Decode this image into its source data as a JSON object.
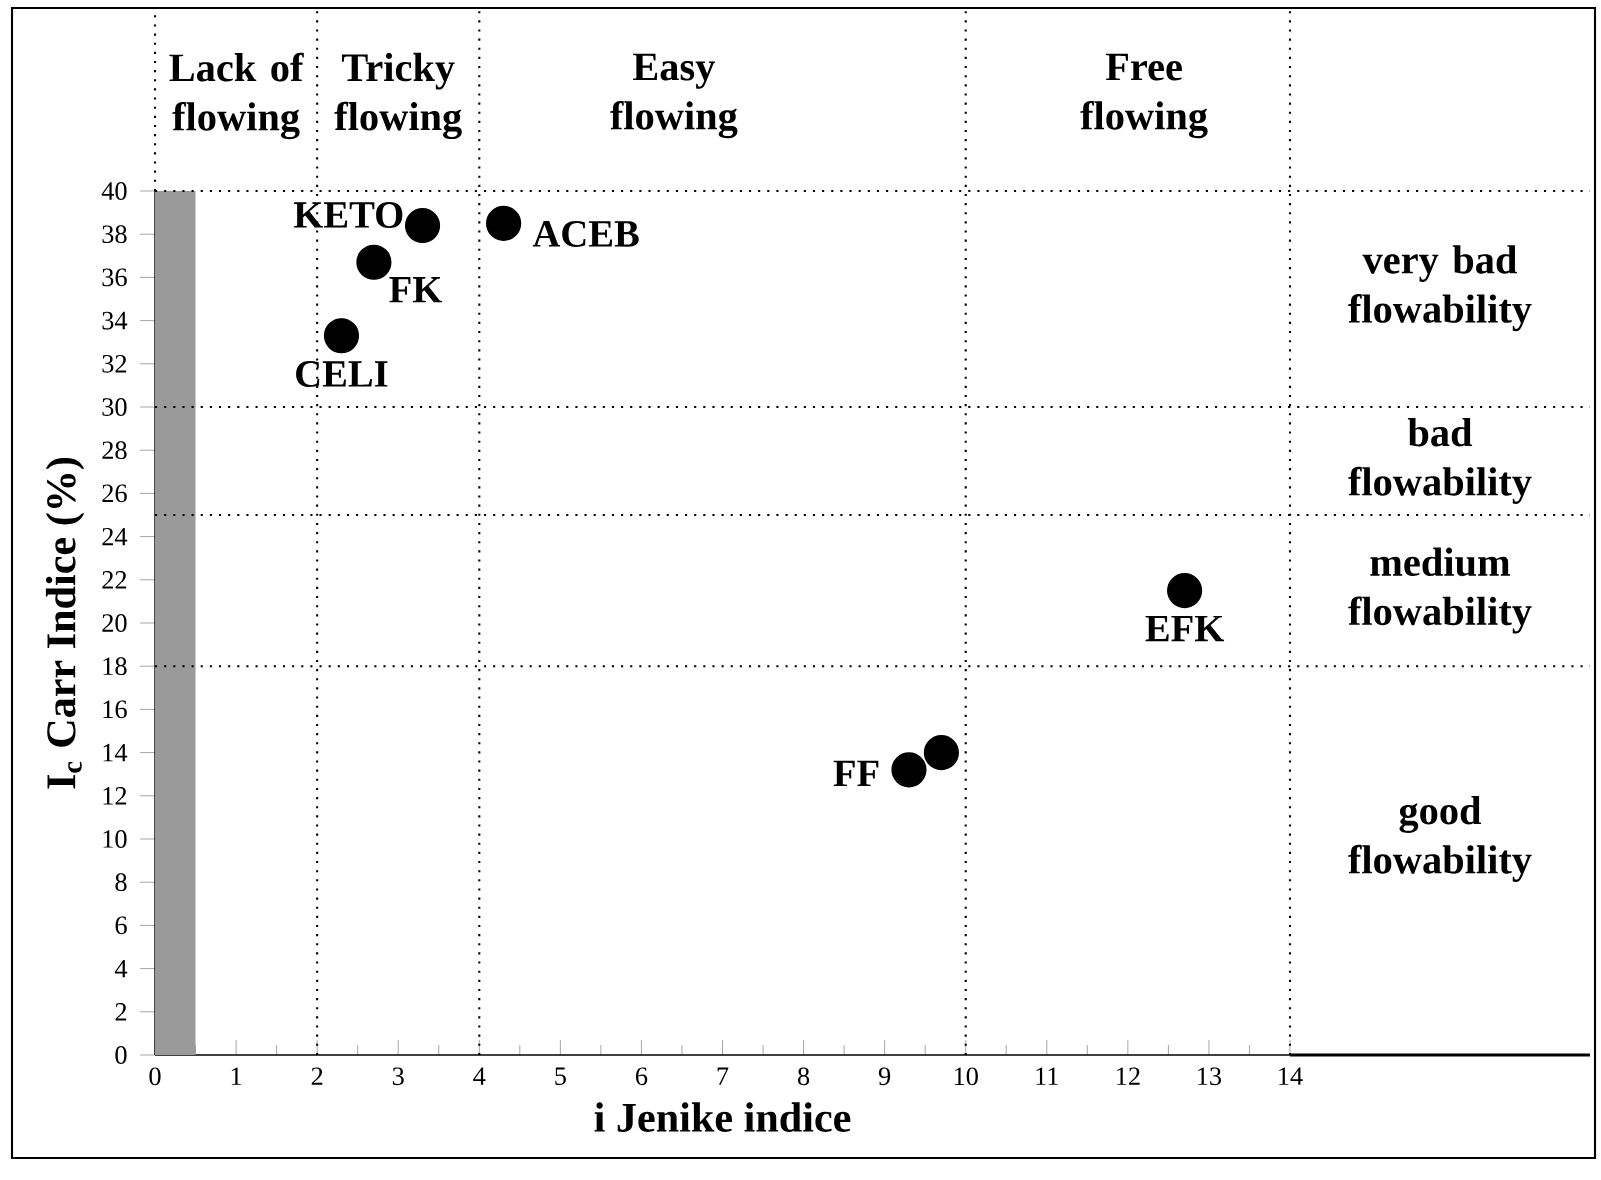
{
  "chart_data": {
    "type": "scatter",
    "xlabel": "i Jenike indice",
    "ylabel": "I$_{c}$ Carr Indice (%)",
    "x": [
      3.3,
      4.3,
      2.7,
      2.3,
      12.7,
      9.3,
      9.7
    ],
    "values": [
      38.4,
      38.5,
      36.7,
      33.3,
      21.5,
      13.2,
      14.0
    ],
    "color": "#000000",
    "marker": "circle",
    "xlim": [
      0,
      14
    ],
    "ylim": [
      0,
      40
    ],
    "xticks": [
      0,
      1,
      2,
      3,
      4,
      5,
      6,
      7,
      8,
      9,
      10,
      11,
      12,
      13,
      14
    ],
    "yticks": [
      0,
      2,
      4,
      6,
      8,
      10,
      12,
      14,
      16,
      18,
      20,
      22,
      24,
      26,
      28,
      30,
      32,
      34,
      36,
      38,
      40
    ],
    "ref_lines": [
      {
        "axis": "x",
        "value": 2
      },
      {
        "axis": "x",
        "value": 4
      },
      {
        "axis": "x",
        "value": 10
      },
      {
        "axis": "y",
        "value": 18
      },
      {
        "axis": "y",
        "value": 25
      },
      {
        "axis": "y",
        "value": 30
      }
    ],
    "bands": [
      {
        "axis": "x",
        "from": 0,
        "to": 0.5,
        "color": "#9a9a9a"
      }
    ],
    "annotations": [
      "Lack of flowing",
      "Tricky flowing",
      "Easy flowing",
      "Free flowing",
      "very bad flowability",
      "bad flowability",
      "medium flowability",
      "good flowability",
      {
        "text": "KETO",
        "x": 3.3,
        "y": 38.4
      },
      {
        "text": "ACEB",
        "x": 4.3,
        "y": 38.5
      },
      {
        "text": "FK",
        "x": 2.7,
        "y": 36.7
      },
      {
        "text": "CELI",
        "x": 2.3,
        "y": 33.3
      },
      {
        "text": "EFK",
        "x": 12.7,
        "y": 21.5
      },
      {
        "text": "FF",
        "x": 9.3,
        "y": 13.2
      }
    ]
  }
}
